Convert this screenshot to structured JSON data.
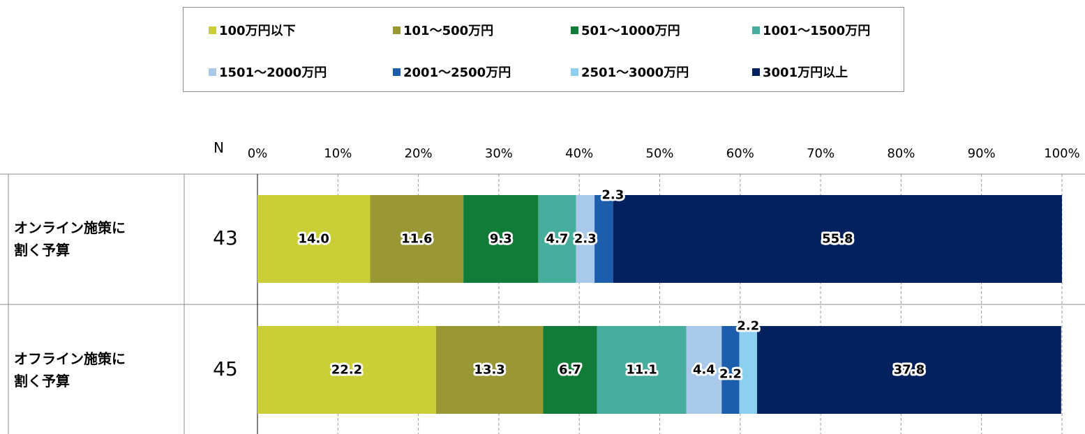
{
  "chart_data": {
    "type": "bar",
    "orientation": "horizontal",
    "stacked": true,
    "n_header": "N",
    "xlim": [
      0,
      100
    ],
    "x_ticks": [
      "0%",
      "10%",
      "20%",
      "30%",
      "40%",
      "50%",
      "60%",
      "70%",
      "80%",
      "90%",
      "100%"
    ],
    "grid": "vertical dashed",
    "legend_position": "top",
    "categories": [
      "オンライン施策に\n割く予算",
      "オフライン施策に\n割く予算"
    ],
    "n_values": [
      "43",
      "45"
    ],
    "series": [
      {
        "name": "100万円以下",
        "color": "#cbcf37",
        "values": [
          14.0,
          22.2
        ]
      },
      {
        "name": "101～500万円",
        "color": "#999834",
        "values": [
          11.6,
          13.3
        ]
      },
      {
        "name": "501～1000万円",
        "color": "#117b38",
        "values": [
          9.3,
          6.7
        ]
      },
      {
        "name": "1001～1500万円",
        "color": "#47ad9c",
        "values": [
          4.7,
          11.1
        ]
      },
      {
        "name": "1501～2000万円",
        "color": "#a9c9ea",
        "values": [
          2.3,
          4.4
        ]
      },
      {
        "name": "2001～2500万円",
        "color": "#1c5dac",
        "values": [
          2.3,
          2.2
        ]
      },
      {
        "name": "2501～3000万円",
        "color": "#8ccfee",
        "values": [
          0,
          2.2
        ]
      },
      {
        "name": "3001万円以上",
        "color": "#03215f",
        "values": [
          55.8,
          37.8
        ]
      }
    ]
  }
}
